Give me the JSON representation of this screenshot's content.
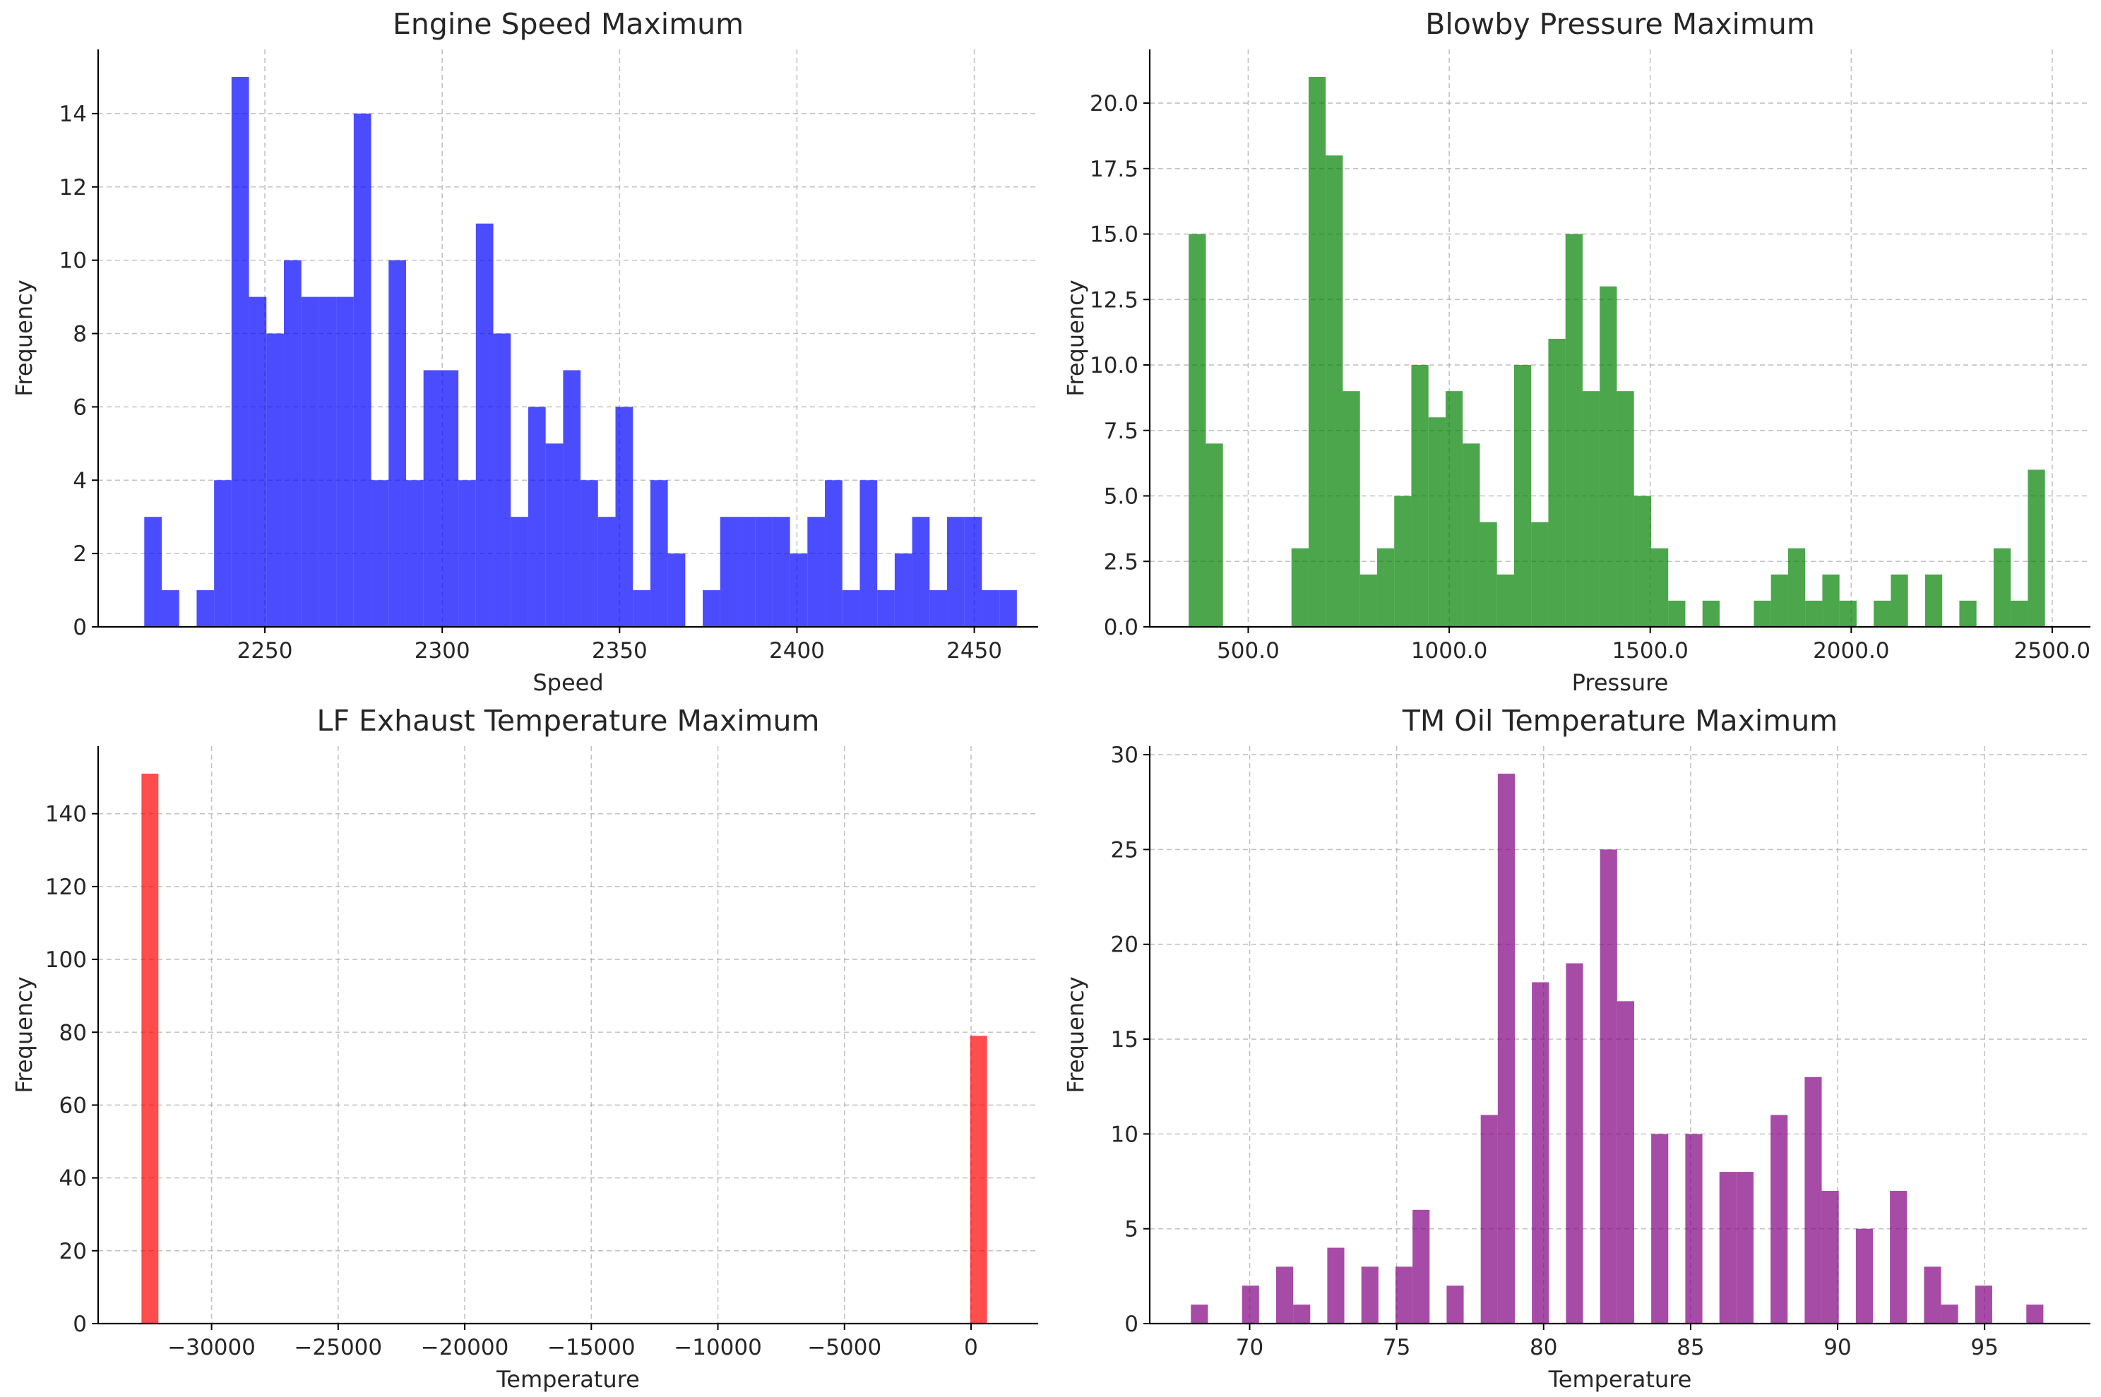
{
  "chart_data": [
    {
      "type": "bar",
      "title": "Engine Speed Maximum",
      "xlabel": "Speed",
      "ylabel": "Frequency",
      "color": "#0000ff",
      "bar_opacity": 0.7,
      "grid": true,
      "xlim": [
        2203,
        2468
      ],
      "ylim": [
        0,
        15.75
      ],
      "xticks": [
        2250,
        2300,
        2350,
        2400,
        2450
      ],
      "yticks": [
        0,
        2,
        4,
        6,
        8,
        10,
        12,
        14
      ],
      "bin_start": 2216,
      "bin_width": 4.92,
      "values": [
        3,
        1,
        0,
        1,
        4,
        15,
        9,
        8,
        10,
        9,
        9,
        9,
        14,
        4,
        10,
        4,
        7,
        7,
        4,
        11,
        8,
        3,
        6,
        5,
        7,
        4,
        3,
        6,
        1,
        4,
        2,
        0,
        1,
        3,
        3,
        3,
        3,
        2,
        3,
        4,
        1,
        4,
        1,
        2,
        3,
        1,
        3,
        3,
        1,
        1
      ]
    },
    {
      "type": "bar",
      "title": "Blowby Pressure Maximum",
      "xlabel": "Pressure",
      "ylabel": "Frequency",
      "color": "#008000",
      "bar_opacity": 0.7,
      "grid": true,
      "xlim": [
        255,
        2595
      ],
      "ylim": [
        0,
        22.05
      ],
      "xticks": [
        500,
        1000,
        1500,
        2000,
        2500
      ],
      "yticks": [
        0.0,
        2.5,
        5.0,
        7.5,
        10.0,
        12.5,
        15.0,
        17.5,
        20.0
      ],
      "tick_decimals": 1,
      "bin_start": 352,
      "bin_width": 42.6,
      "values": [
        15,
        7,
        0,
        0,
        0,
        0,
        3,
        21,
        18,
        9,
        2,
        3,
        5,
        10,
        8,
        9,
        7,
        4,
        2,
        10,
        4,
        11,
        15,
        9,
        13,
        9,
        5,
        3,
        1,
        0,
        1,
        0,
        0,
        1,
        2,
        3,
        1,
        2,
        1,
        0,
        1,
        2,
        0,
        2,
        0,
        1,
        0,
        3,
        1,
        6
      ]
    },
    {
      "type": "bar",
      "title": "LF Exhaust Temperature Maximum",
      "xlabel": "Temperature",
      "ylabel": "Frequency",
      "color": "#ff0000",
      "bar_opacity": 0.7,
      "grid": true,
      "xlim": [
        -34480,
        2650
      ],
      "ylim": [
        0,
        158.55
      ],
      "xticks": [
        -30000,
        -25000,
        -20000,
        -15000,
        -10000,
        -5000,
        0
      ],
      "yticks": [
        0,
        20,
        40,
        60,
        80,
        100,
        120,
        140
      ],
      "unicode_minus": true,
      "bin_start": -32768,
      "bin_width": 668.0,
      "values": [
        151,
        0,
        0,
        0,
        0,
        0,
        0,
        0,
        0,
        0,
        0,
        0,
        0,
        0,
        0,
        0,
        0,
        0,
        0,
        0,
        0,
        0,
        0,
        0,
        0,
        0,
        0,
        0,
        0,
        0,
        0,
        0,
        0,
        0,
        0,
        0,
        0,
        0,
        0,
        0,
        0,
        0,
        0,
        0,
        0,
        0,
        0,
        0,
        0,
        79
      ]
    },
    {
      "type": "bar",
      "title": "TM Oil Temperature Maximum",
      "xlabel": "Temperature",
      "ylabel": "Frequency",
      "color": "#800080",
      "bar_opacity": 0.7,
      "grid": true,
      "xlim": [
        66.6,
        98.6
      ],
      "ylim": [
        0,
        30.45
      ],
      "xticks": [
        70,
        75,
        80,
        85,
        90,
        95
      ],
      "yticks": [
        0,
        5,
        10,
        15,
        20,
        25,
        30
      ],
      "bin_start": 68.0,
      "bin_width": 0.58,
      "values": [
        1,
        0,
        0,
        2,
        0,
        3,
        1,
        0,
        4,
        0,
        3,
        0,
        3,
        6,
        0,
        2,
        0,
        11,
        29,
        0,
        18,
        0,
        19,
        0,
        25,
        17,
        0,
        10,
        0,
        10,
        0,
        8,
        8,
        0,
        11,
        0,
        13,
        7,
        0,
        5,
        0,
        7,
        0,
        3,
        1,
        0,
        2,
        0,
        0,
        1
      ]
    }
  ]
}
